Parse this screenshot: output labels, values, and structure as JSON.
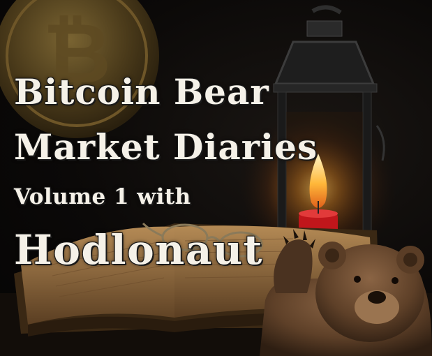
{
  "cover": {
    "title_line1": "Bitcoin Bear",
    "title_line2": "Market Diaries",
    "title_line3": "Volume 1 with",
    "title_line4": "Hodlonaut"
  },
  "colors": {
    "background": "#0b0908",
    "title_text": "#f5f1e8",
    "coin_gold": "#b8923a",
    "candle_red": "#c0161b",
    "flame": "#ffb83a",
    "book_paper": "#a07a48",
    "bear_fur": "#6b4a30"
  },
  "icons": [
    "bitcoin-coin-icon",
    "lantern-icon",
    "candle-flame-icon",
    "open-book-icon",
    "glasses-icon",
    "waving-bear-icon"
  ]
}
